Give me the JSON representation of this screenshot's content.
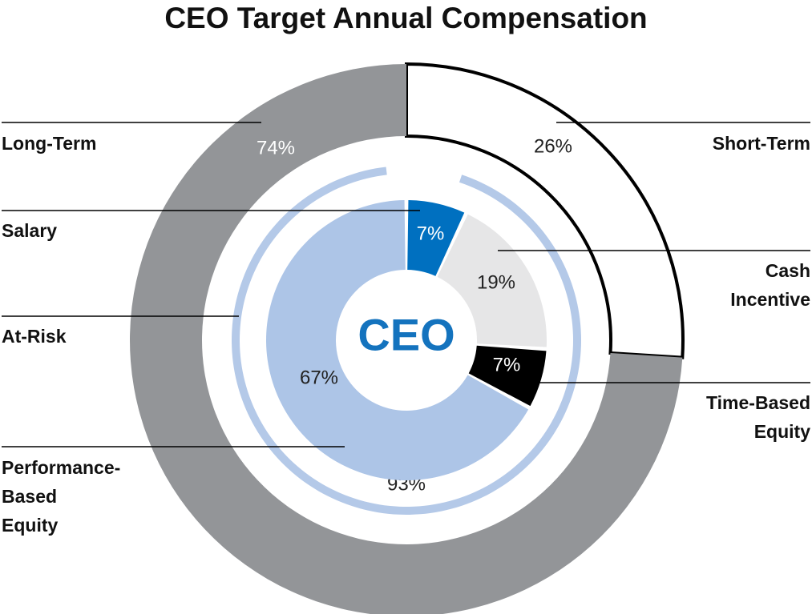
{
  "chart_data": {
    "type": "pie",
    "title": "CEO Target Annual Compensation",
    "center_label": "CEO",
    "rings": [
      {
        "ring": "outer",
        "slices": [
          {
            "name": "Short-Term",
            "value": 26,
            "label": "26%",
            "color": "#ffffff",
            "stroke": "#000000"
          },
          {
            "name": "Long-Term",
            "value": 74,
            "label": "74%",
            "color": "#939598"
          }
        ]
      },
      {
        "ring": "middle",
        "slices": [
          {
            "name": "At-Risk",
            "value": 93,
            "label": "93%",
            "color": "#b4c9e8"
          }
        ]
      },
      {
        "ring": "inner",
        "slices": [
          {
            "name": "Salary",
            "value": 7,
            "label": "7%",
            "color": "#0070c0"
          },
          {
            "name": "Cash Incentive",
            "value": 19,
            "label": "19%",
            "color": "#e6e6e7"
          },
          {
            "name": "Time-Based Equity",
            "value": 7,
            "label": "7%",
            "color": "#000000"
          },
          {
            "name": "Performance-Based Equity",
            "value": 67,
            "label": "67%",
            "color": "#adc5e7"
          }
        ]
      }
    ],
    "callouts": {
      "long_term": "Long-Term",
      "salary": "Salary",
      "at_risk": "At-Risk",
      "performance_based_equity": [
        "Performance-",
        "Based",
        "Equity"
      ],
      "short_term": "Short-Term",
      "cash_incentive": [
        "Cash",
        "Incentive"
      ],
      "time_based_equity": [
        "Time-Based",
        "Equity"
      ]
    }
  },
  "colors": {
    "center_text": "#1473be",
    "title": "#111111",
    "leader": "#000000",
    "light_text": "#ffffff",
    "dark_text": "#222222"
  }
}
